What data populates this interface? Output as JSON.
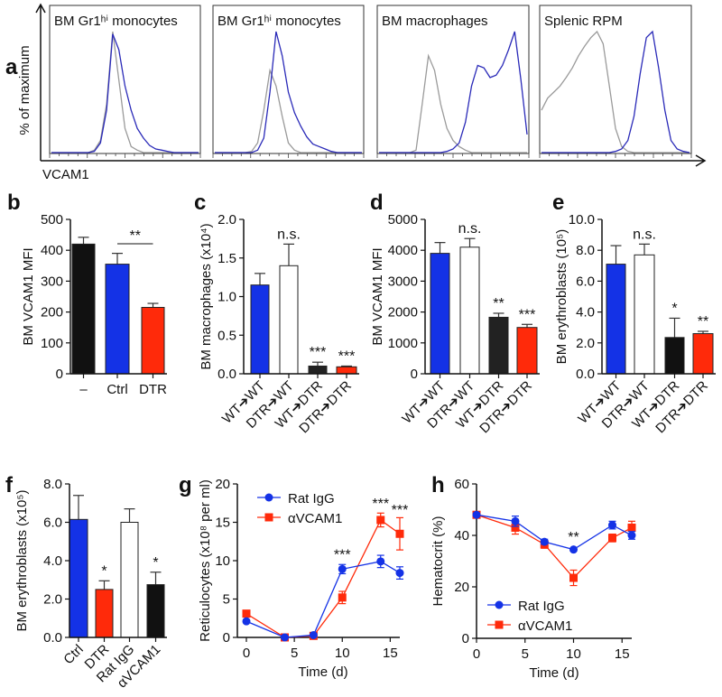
{
  "colors": {
    "blue": "#1432e6",
    "red": "#ff2a0a",
    "black": "#111111",
    "dark": "#222222",
    "white": "#ffffff",
    "gray": "#9a9a9a",
    "hist_blue": "#2a2ab8"
  },
  "chart_data": [
    {
      "panel": "a",
      "type": "line",
      "ylabel": "% of maximum",
      "xlabel": "VCAM1",
      "subplots": [
        {
          "title": "BM Gr1ʰⁱ monocytes",
          "control": [
            0,
            0,
            0,
            0,
            0,
            0,
            0,
            2,
            10,
            40,
            100,
            60,
            20,
            5,
            2,
            0,
            0,
            0,
            0,
            0,
            0,
            0,
            0,
            0,
            0
          ],
          "stained": [
            0,
            0,
            0,
            0,
            0,
            0,
            0,
            1,
            8,
            35,
            98,
            85,
            55,
            35,
            20,
            12,
            6,
            3,
            2,
            1,
            0,
            0,
            0,
            0,
            0
          ]
        },
        {
          "title": "BM Gr1ʰⁱ monocytes",
          "control": [
            0,
            0,
            0,
            0,
            0,
            0,
            1,
            8,
            35,
            68,
            55,
            30,
            8,
            2,
            0,
            0,
            0,
            0,
            0,
            0,
            0,
            0,
            0,
            0,
            0
          ],
          "stained": [
            0,
            0,
            0,
            0,
            0,
            0,
            0,
            2,
            12,
            50,
            100,
            80,
            50,
            33,
            22,
            13,
            7,
            5,
            3,
            1,
            0,
            0,
            0,
            0,
            0
          ]
        },
        {
          "title": "BM macrophages",
          "control": [
            0,
            0,
            0,
            0,
            0,
            0,
            2,
            40,
            80,
            68,
            40,
            20,
            10,
            5,
            2,
            0,
            0,
            0,
            0,
            0,
            0,
            0,
            0,
            0,
            0
          ],
          "stained": [
            0,
            0,
            0,
            0,
            0,
            0,
            0,
            0,
            0,
            0,
            0,
            1,
            3,
            8,
            25,
            55,
            72,
            70,
            62,
            64,
            72,
            85,
            100,
            60,
            15
          ]
        },
        {
          "title": "Splenic RPM",
          "control": [
            35,
            45,
            50,
            55,
            62,
            70,
            80,
            88,
            95,
            100,
            90,
            55,
            20,
            5,
            1,
            0,
            0,
            0,
            0,
            0,
            0,
            0,
            0,
            0,
            0
          ],
          "stained": [
            0,
            0,
            0,
            0,
            0,
            0,
            0,
            0,
            0,
            0,
            0,
            0,
            1,
            3,
            10,
            30,
            65,
            95,
            100,
            70,
            35,
            10,
            3,
            1,
            0
          ]
        }
      ]
    },
    {
      "panel": "b",
      "type": "bar",
      "ylabel": "BM VCAM1 MFI",
      "ylim": [
        0,
        500
      ],
      "yticks": [
        "0",
        "100",
        "200",
        "300",
        "400",
        "500"
      ],
      "categories": [
        "–",
        "Ctrl",
        "DTR"
      ],
      "values": [
        420,
        355,
        215
      ],
      "errors": [
        22,
        35,
        13
      ],
      "bar_colors": [
        "black",
        "blue",
        "red"
      ],
      "bracket": {
        "from": 1,
        "to": 2,
        "label": "**"
      }
    },
    {
      "panel": "c",
      "type": "bar",
      "ylabel": "BM macrophages (x10⁴)",
      "ylim": [
        0,
        2.0
      ],
      "yticks": [
        "0.0",
        "0.5",
        "1.0",
        "1.5",
        "2.0"
      ],
      "categories": [
        "WT➔WT",
        "DTR➔WT",
        "WT➔DTR",
        "DTR➔DTR"
      ],
      "values": [
        1.15,
        1.4,
        0.1,
        0.09
      ],
      "errors": [
        0.15,
        0.28,
        0.05,
        0.01
      ],
      "bar_colors": [
        "blue",
        "white",
        "dark",
        "red"
      ],
      "annotations": [
        "",
        "n.s.",
        "***",
        "***"
      ]
    },
    {
      "panel": "d",
      "type": "bar",
      "ylabel": "BM VCAM1 MFI",
      "ylim": [
        0,
        5000
      ],
      "yticks": [
        "0",
        "1000",
        "2000",
        "3000",
        "4000",
        "5000"
      ],
      "categories": [
        "WT➔WT",
        "DTR➔WT",
        "WT➔DTR",
        "DTR➔DTR"
      ],
      "values": [
        3900,
        4100,
        1830,
        1500
      ],
      "errors": [
        350,
        280,
        130,
        100
      ],
      "bar_colors": [
        "blue",
        "white",
        "dark",
        "red"
      ],
      "annotations": [
        "",
        "n.s.",
        "**",
        "***"
      ]
    },
    {
      "panel": "e",
      "type": "bar",
      "ylabel": "BM erythroblasts (10⁵)",
      "ylim": [
        0,
        10
      ],
      "yticks": [
        "0.0",
        "2.0",
        "4.0",
        "6.0",
        "8.0",
        "10.0"
      ],
      "categories": [
        "WT➔WT",
        "DTR➔WT",
        "WT➔DTR",
        "DTR➔DTR"
      ],
      "values": [
        7.1,
        7.7,
        2.35,
        2.6
      ],
      "errors": [
        1.2,
        0.7,
        1.25,
        0.15
      ],
      "bar_colors": [
        "blue",
        "white",
        "black",
        "red"
      ],
      "annotations": [
        "",
        "n.s.",
        "*",
        "**"
      ]
    },
    {
      "panel": "f",
      "type": "bar",
      "ylabel": "BM erythroblasts (x10⁵)",
      "ylim": [
        0,
        8
      ],
      "yticks": [
        "0.0",
        "2.0",
        "4.0",
        "6.0",
        "8.0"
      ],
      "categories": [
        "Ctrl",
        "DTR",
        "Rat IgG",
        "αVCAM1"
      ],
      "values": [
        6.15,
        2.5,
        6.0,
        2.75
      ],
      "errors": [
        1.25,
        0.45,
        0.7,
        0.65
      ],
      "bar_colors": [
        "blue",
        "red",
        "white",
        "black"
      ],
      "annotations": [
        "",
        "*",
        "",
        "*"
      ]
    },
    {
      "panel": "g",
      "type": "line",
      "ylabel": "Reticulocytes (x10⁸ per ml)",
      "xlabel": "Time (d)",
      "xlim": [
        0,
        16
      ],
      "ylim": [
        0,
        20
      ],
      "xticks": [
        "0",
        "5",
        "10",
        "15"
      ],
      "yticks": [
        "0",
        "5",
        "10",
        "15",
        "20"
      ],
      "x": [
        0,
        4,
        7,
        10,
        14,
        16
      ],
      "series": [
        {
          "name": "Rat IgG",
          "color": "blue",
          "marker": "circle",
          "values": [
            2.1,
            0,
            0.3,
            8.9,
            9.9,
            8.4
          ],
          "errors": [
            0.2,
            0,
            0.1,
            0.6,
            0.8,
            0.8
          ]
        },
        {
          "name": "αVCAM1",
          "color": "red",
          "marker": "square",
          "values": [
            3.1,
            0,
            0.2,
            5.2,
            15.3,
            13.5
          ],
          "errors": [
            0.3,
            0,
            0.1,
            0.8,
            0.9,
            2.1
          ]
        }
      ],
      "annotations": [
        {
          "x": 10,
          "y": 10.2,
          "label": "***"
        },
        {
          "x": 14,
          "y": 16.8,
          "label": "***"
        },
        {
          "x": 16,
          "y": 16.0,
          "label": "***"
        }
      ],
      "legend": "top-left"
    },
    {
      "panel": "h",
      "type": "line",
      "ylabel": "Hematocrit (%)",
      "xlabel": "Time (d)",
      "xlim": [
        0,
        16
      ],
      "ylim": [
        0,
        60
      ],
      "xticks": [
        "0",
        "5",
        "10",
        "15"
      ],
      "yticks": [
        "0",
        "20",
        "40",
        "60"
      ],
      "x": [
        0,
        4,
        7,
        10,
        14,
        16
      ],
      "series": [
        {
          "name": "Rat IgG",
          "color": "blue",
          "marker": "circle",
          "values": [
            48,
            45.5,
            37.5,
            34.5,
            44,
            40
          ],
          "errors": [
            0.5,
            2,
            1,
            0.5,
            1.5,
            1.5
          ]
        },
        {
          "name": "αVCAM1",
          "color": "red",
          "marker": "square",
          "values": [
            48,
            43,
            36.5,
            23.5,
            39,
            43
          ],
          "errors": [
            0.5,
            2.5,
            1.5,
            3,
            1.5,
            2.5
          ]
        }
      ],
      "annotations": [
        {
          "x": 10,
          "y": 37.5,
          "label": "**"
        }
      ],
      "legend": "bottom-left"
    }
  ]
}
